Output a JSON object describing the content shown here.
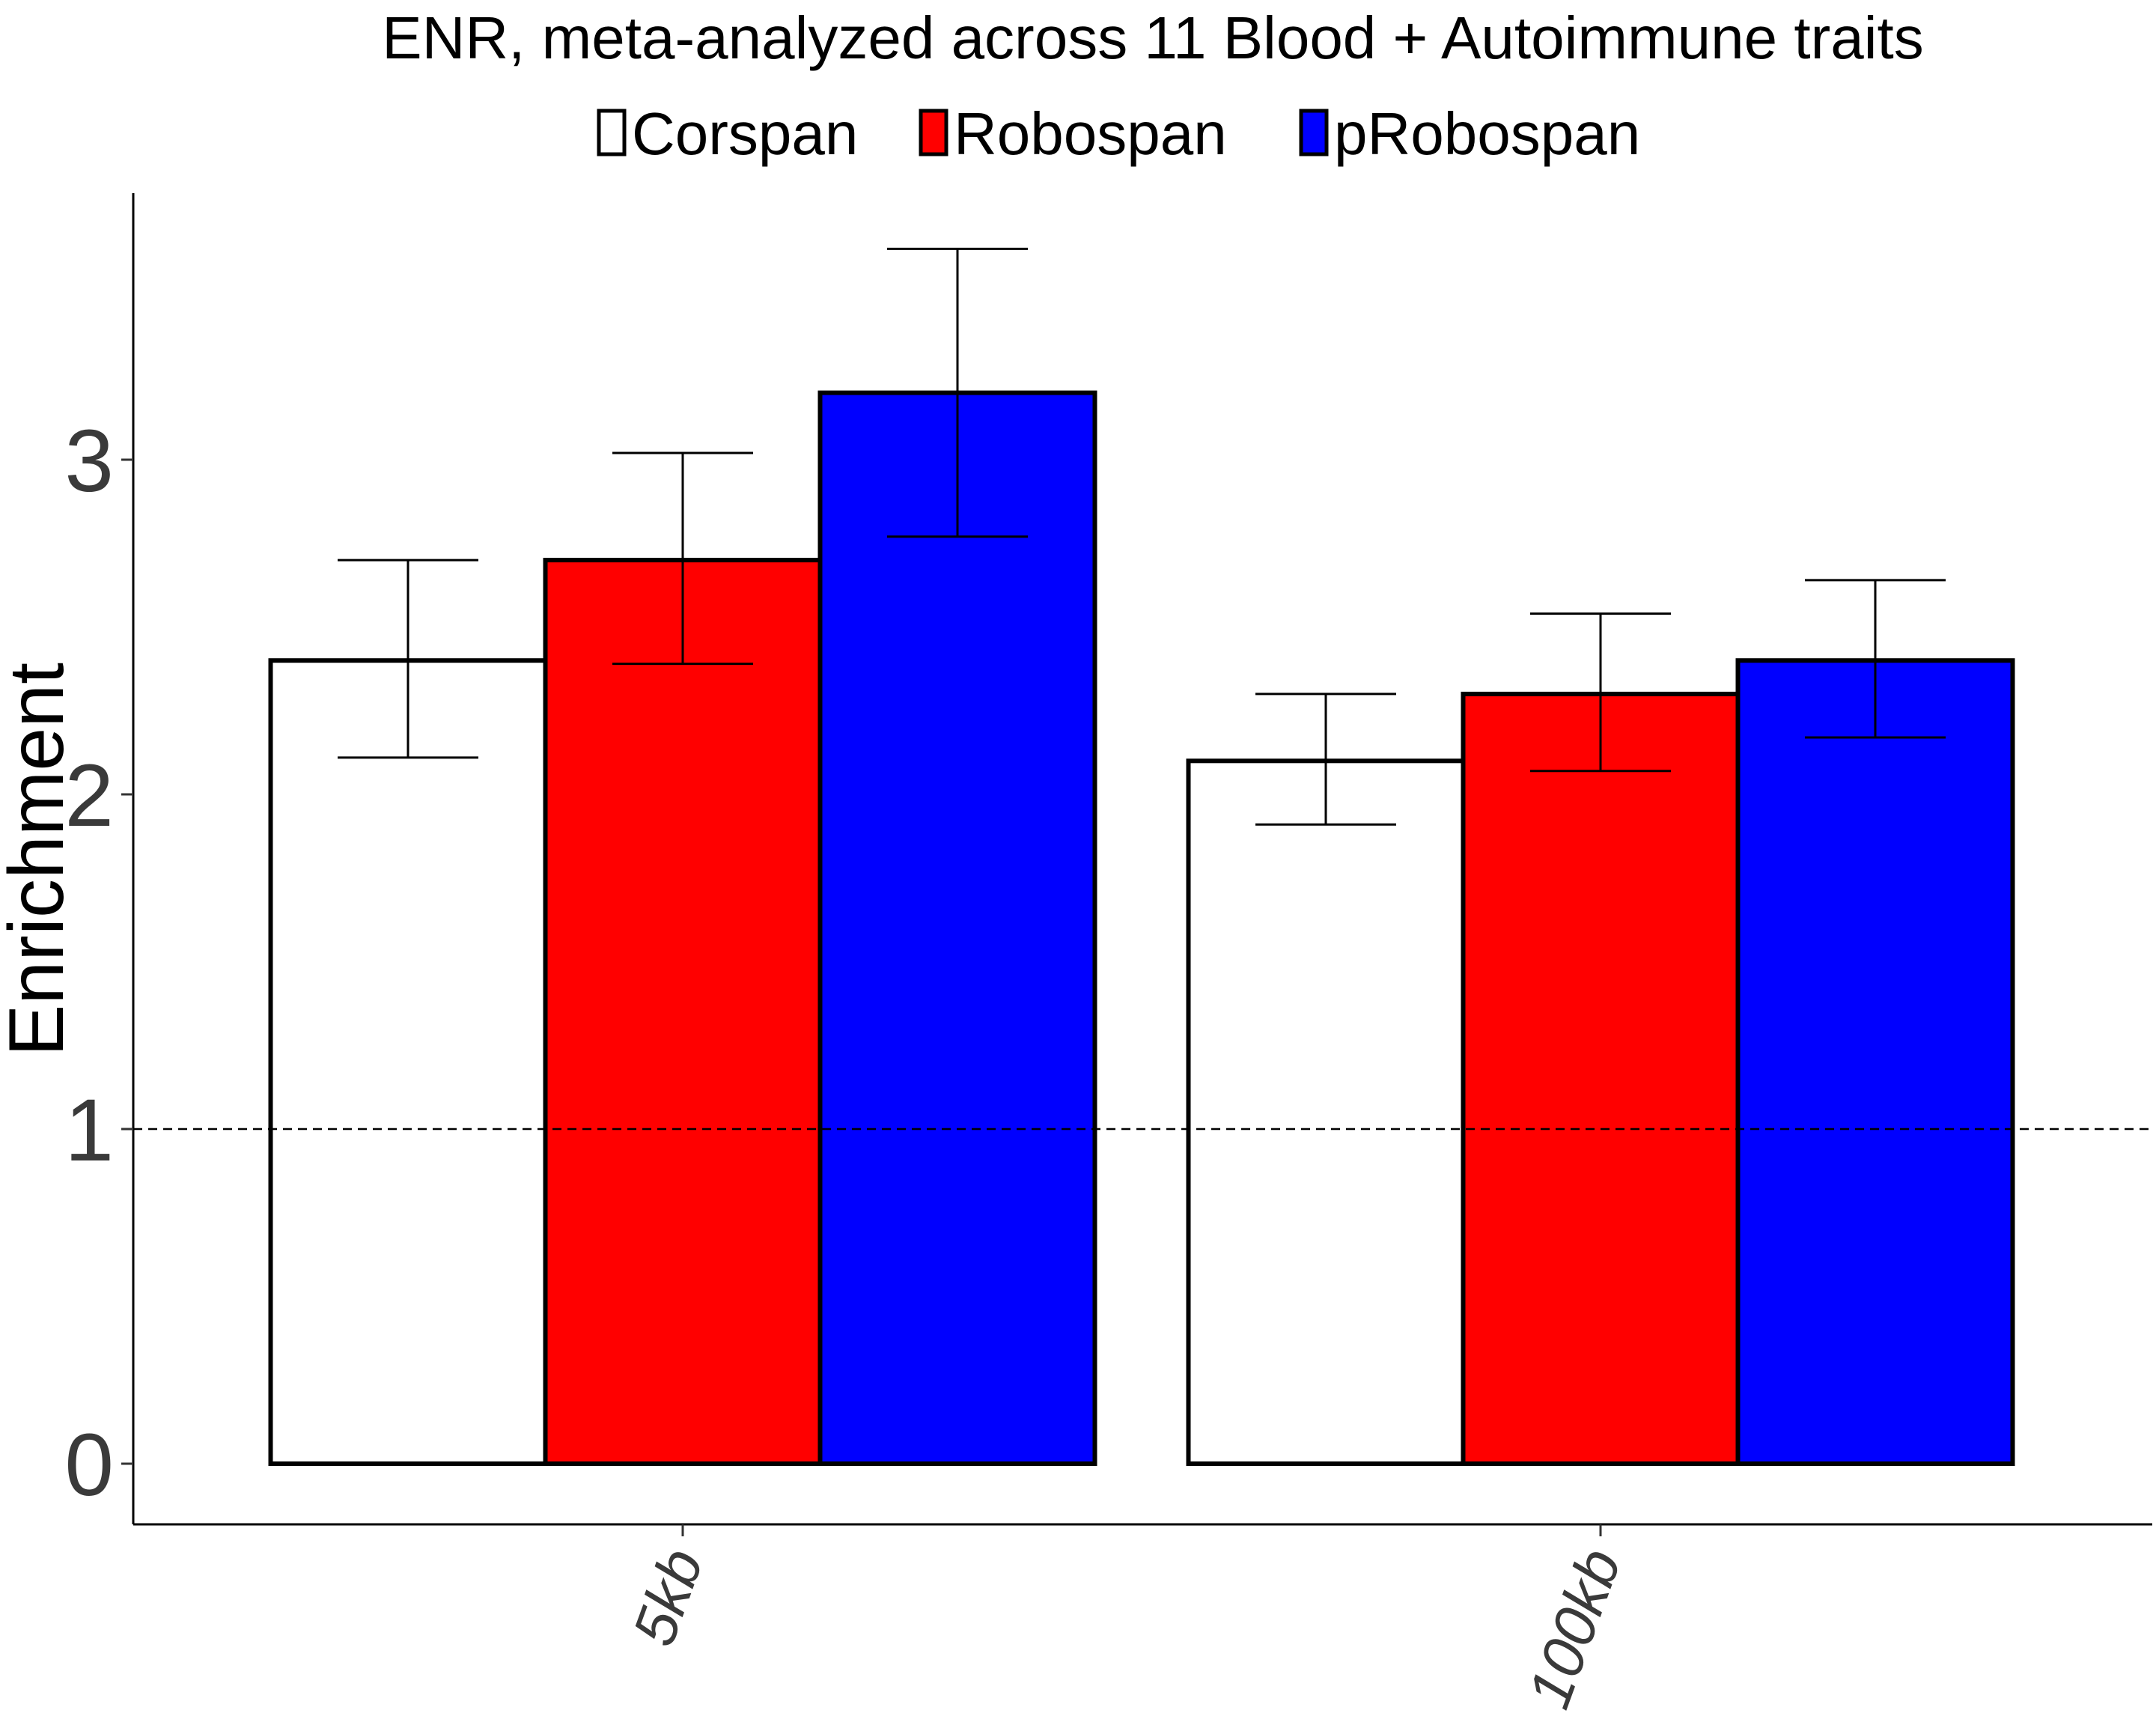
{
  "chart_data": {
    "type": "bar",
    "title": "ENR, meta-analyzed across 11 Blood + Autoimmune traits",
    "xlabel": "",
    "ylabel": "Enrichment",
    "categories": [
      "5kb",
      "100kb"
    ],
    "series": [
      {
        "name": "Corspan",
        "values": [
          2.4,
          2.1
        ],
        "err_low": [
          2.11,
          1.91
        ],
        "err_high": [
          2.7,
          2.3
        ]
      },
      {
        "name": "Robospan",
        "values": [
          2.7,
          2.3
        ],
        "err_low": [
          2.39,
          2.07
        ],
        "err_high": [
          3.02,
          2.54
        ]
      },
      {
        "name": "pRobospan",
        "values": [
          3.2,
          2.4
        ],
        "err_low": [
          2.77,
          2.17
        ],
        "err_high": [
          3.63,
          2.64
        ]
      }
    ],
    "colors": [
      "#ffffff",
      "#ff0000",
      "#0000ff"
    ],
    "yticks": [
      "0",
      "1",
      "2",
      "3"
    ],
    "ylim": [
      -0.18,
      3.8
    ],
    "reference_line": 1,
    "legend_position": "top",
    "grid": false
  }
}
